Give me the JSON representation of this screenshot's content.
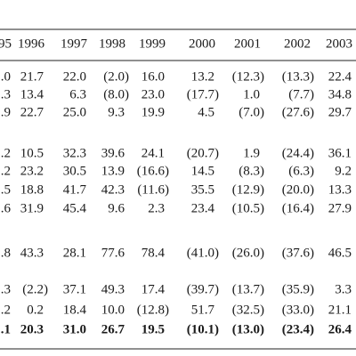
{
  "table": {
    "header": [
      "95",
      "1996",
      "1997",
      "1998",
      "1999",
      "2000",
      "2001",
      "2002",
      "2003"
    ],
    "rows": [
      [
        ".0",
        "21.7",
        "22.0",
        "(2.0)",
        "16.0",
        "13.2",
        "(12.3)",
        "(13.3)",
        "22.4"
      ],
      [
        ".3",
        "13.4",
        "6.3",
        "(8.0)",
        "23.0",
        "(17.7)",
        "1.0",
        "(7.7)",
        "34.8"
      ],
      [
        ".9",
        "22.7",
        "25.0",
        "9.3",
        "19.9",
        "4.5",
        "(7.0)",
        "(27.6)",
        "29.7"
      ],
      [
        ".2",
        "10.5",
        "32.3",
        "39.6",
        "24.1",
        "(20.7)",
        "1.9",
        "(24.4)",
        "36.1"
      ],
      [
        ".2",
        "23.2",
        "30.5",
        "13.9",
        "(16.6)",
        "14.5",
        "(8.3)",
        "(6.3)",
        "9.2"
      ],
      [
        ".5",
        "18.8",
        "41.7",
        "42.3",
        "(11.6)",
        "35.5",
        "(12.9)",
        "(20.0)",
        "13.3"
      ],
      [
        ".6",
        "31.9",
        "45.4",
        "9.6",
        "2.3",
        "23.4",
        "(10.5)",
        "(16.4)",
        "27.9"
      ],
      [
        ".8",
        "43.3",
        "28.1",
        "77.6",
        "78.4",
        "(41.0)",
        "(26.0)",
        "(37.6)",
        "46.5"
      ],
      [
        ".3",
        "(2.2)",
        "37.1",
        "49.3",
        "17.4",
        "(39.7)",
        "(13.7)",
        "(35.9)",
        "3.3"
      ],
      [
        ".2",
        "0.2",
        "18.4",
        "10.0",
        "(12.8)",
        "51.7",
        "(32.5)",
        "(33.0)",
        "21.1"
      ],
      [
        ".1",
        "20.3",
        "31.0",
        "26.7",
        "19.5",
        "(10.1)",
        "(13.0)",
        "(23.4)",
        "26.4"
      ]
    ]
  }
}
